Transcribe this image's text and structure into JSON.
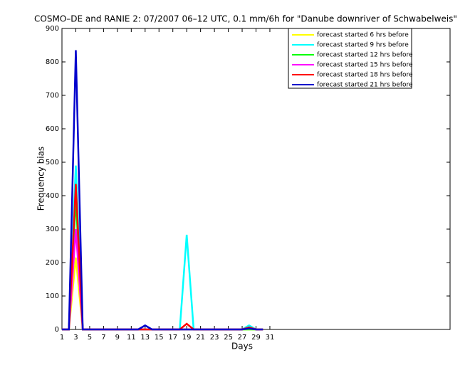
{
  "chart_data": {
    "type": "line",
    "title": "COSMO–DE and RANIE 2: 07/2007 06–12 UTC, 0.1 mm/6h for \"Danube downriver of Schwabelweis\"",
    "xlabel": "Days",
    "ylabel": "Frequency bias",
    "x": [
      1,
      2,
      3,
      4,
      5,
      6,
      7,
      8,
      9,
      10,
      11,
      12,
      13,
      14,
      15,
      16,
      17,
      18,
      19,
      20,
      21,
      22,
      23,
      24,
      25,
      26,
      27,
      28,
      29,
      30
    ],
    "series": [
      {
        "name": "forecast started 6 hrs before",
        "color": "#ffff00",
        "values": [
          0,
          0,
          215,
          0,
          0,
          0,
          0,
          0,
          0,
          0,
          0,
          0,
          0,
          0,
          0,
          0,
          0,
          0,
          0,
          0,
          0,
          0,
          0,
          0,
          0,
          0,
          0,
          0,
          0,
          0
        ]
      },
      {
        "name": "forecast started 9 hrs before",
        "color": "#00ffff",
        "values": [
          0,
          0,
          490,
          0,
          0,
          0,
          0,
          0,
          0,
          0,
          0,
          0,
          0,
          0,
          0,
          0,
          0,
          0,
          283,
          0,
          0,
          0,
          0,
          0,
          0,
          0,
          0,
          12,
          0,
          0
        ]
      },
      {
        "name": "forecast started 12 hrs before",
        "color": "#00ff00",
        "values": [
          0,
          0,
          390,
          0,
          0,
          0,
          0,
          0,
          0,
          0,
          0,
          0,
          0,
          0,
          0,
          0,
          0,
          0,
          0,
          0,
          0,
          0,
          0,
          0,
          0,
          0,
          0,
          0,
          0,
          0
        ]
      },
      {
        "name": "forecast started 15 hrs before",
        "color": "#ff00ff",
        "values": [
          0,
          0,
          300,
          0,
          0,
          0,
          0,
          0,
          0,
          0,
          0,
          0,
          0,
          0,
          0,
          0,
          0,
          0,
          0,
          0,
          0,
          0,
          0,
          0,
          0,
          0,
          0,
          5,
          0,
          0
        ]
      },
      {
        "name": "forecast started 18 hrs before",
        "color": "#ff0000",
        "values": [
          0,
          0,
          435,
          0,
          0,
          0,
          0,
          0,
          0,
          0,
          0,
          0,
          0,
          0,
          0,
          0,
          0,
          0,
          17,
          0,
          0,
          0,
          0,
          0,
          0,
          0,
          0,
          6,
          0,
          0
        ]
      },
      {
        "name": "forecast started 21 hrs before",
        "color": "#0000cc",
        "values": [
          0,
          0,
          835,
          0,
          0,
          0,
          0,
          0,
          0,
          0,
          0,
          0,
          12,
          0,
          0,
          0,
          0,
          0,
          0,
          0,
          0,
          0,
          0,
          0,
          0,
          0,
          0,
          3,
          0,
          0
        ]
      }
    ],
    "xlim": [
      1,
      57
    ],
    "ylim": [
      0,
      900
    ],
    "xticks": [
      1,
      3,
      5,
      7,
      9,
      11,
      13,
      15,
      17,
      19,
      21,
      23,
      25,
      27,
      29,
      31
    ],
    "yticks": [
      0,
      100,
      200,
      300,
      400,
      500,
      600,
      700,
      800,
      900
    ],
    "legend": "top-right"
  }
}
